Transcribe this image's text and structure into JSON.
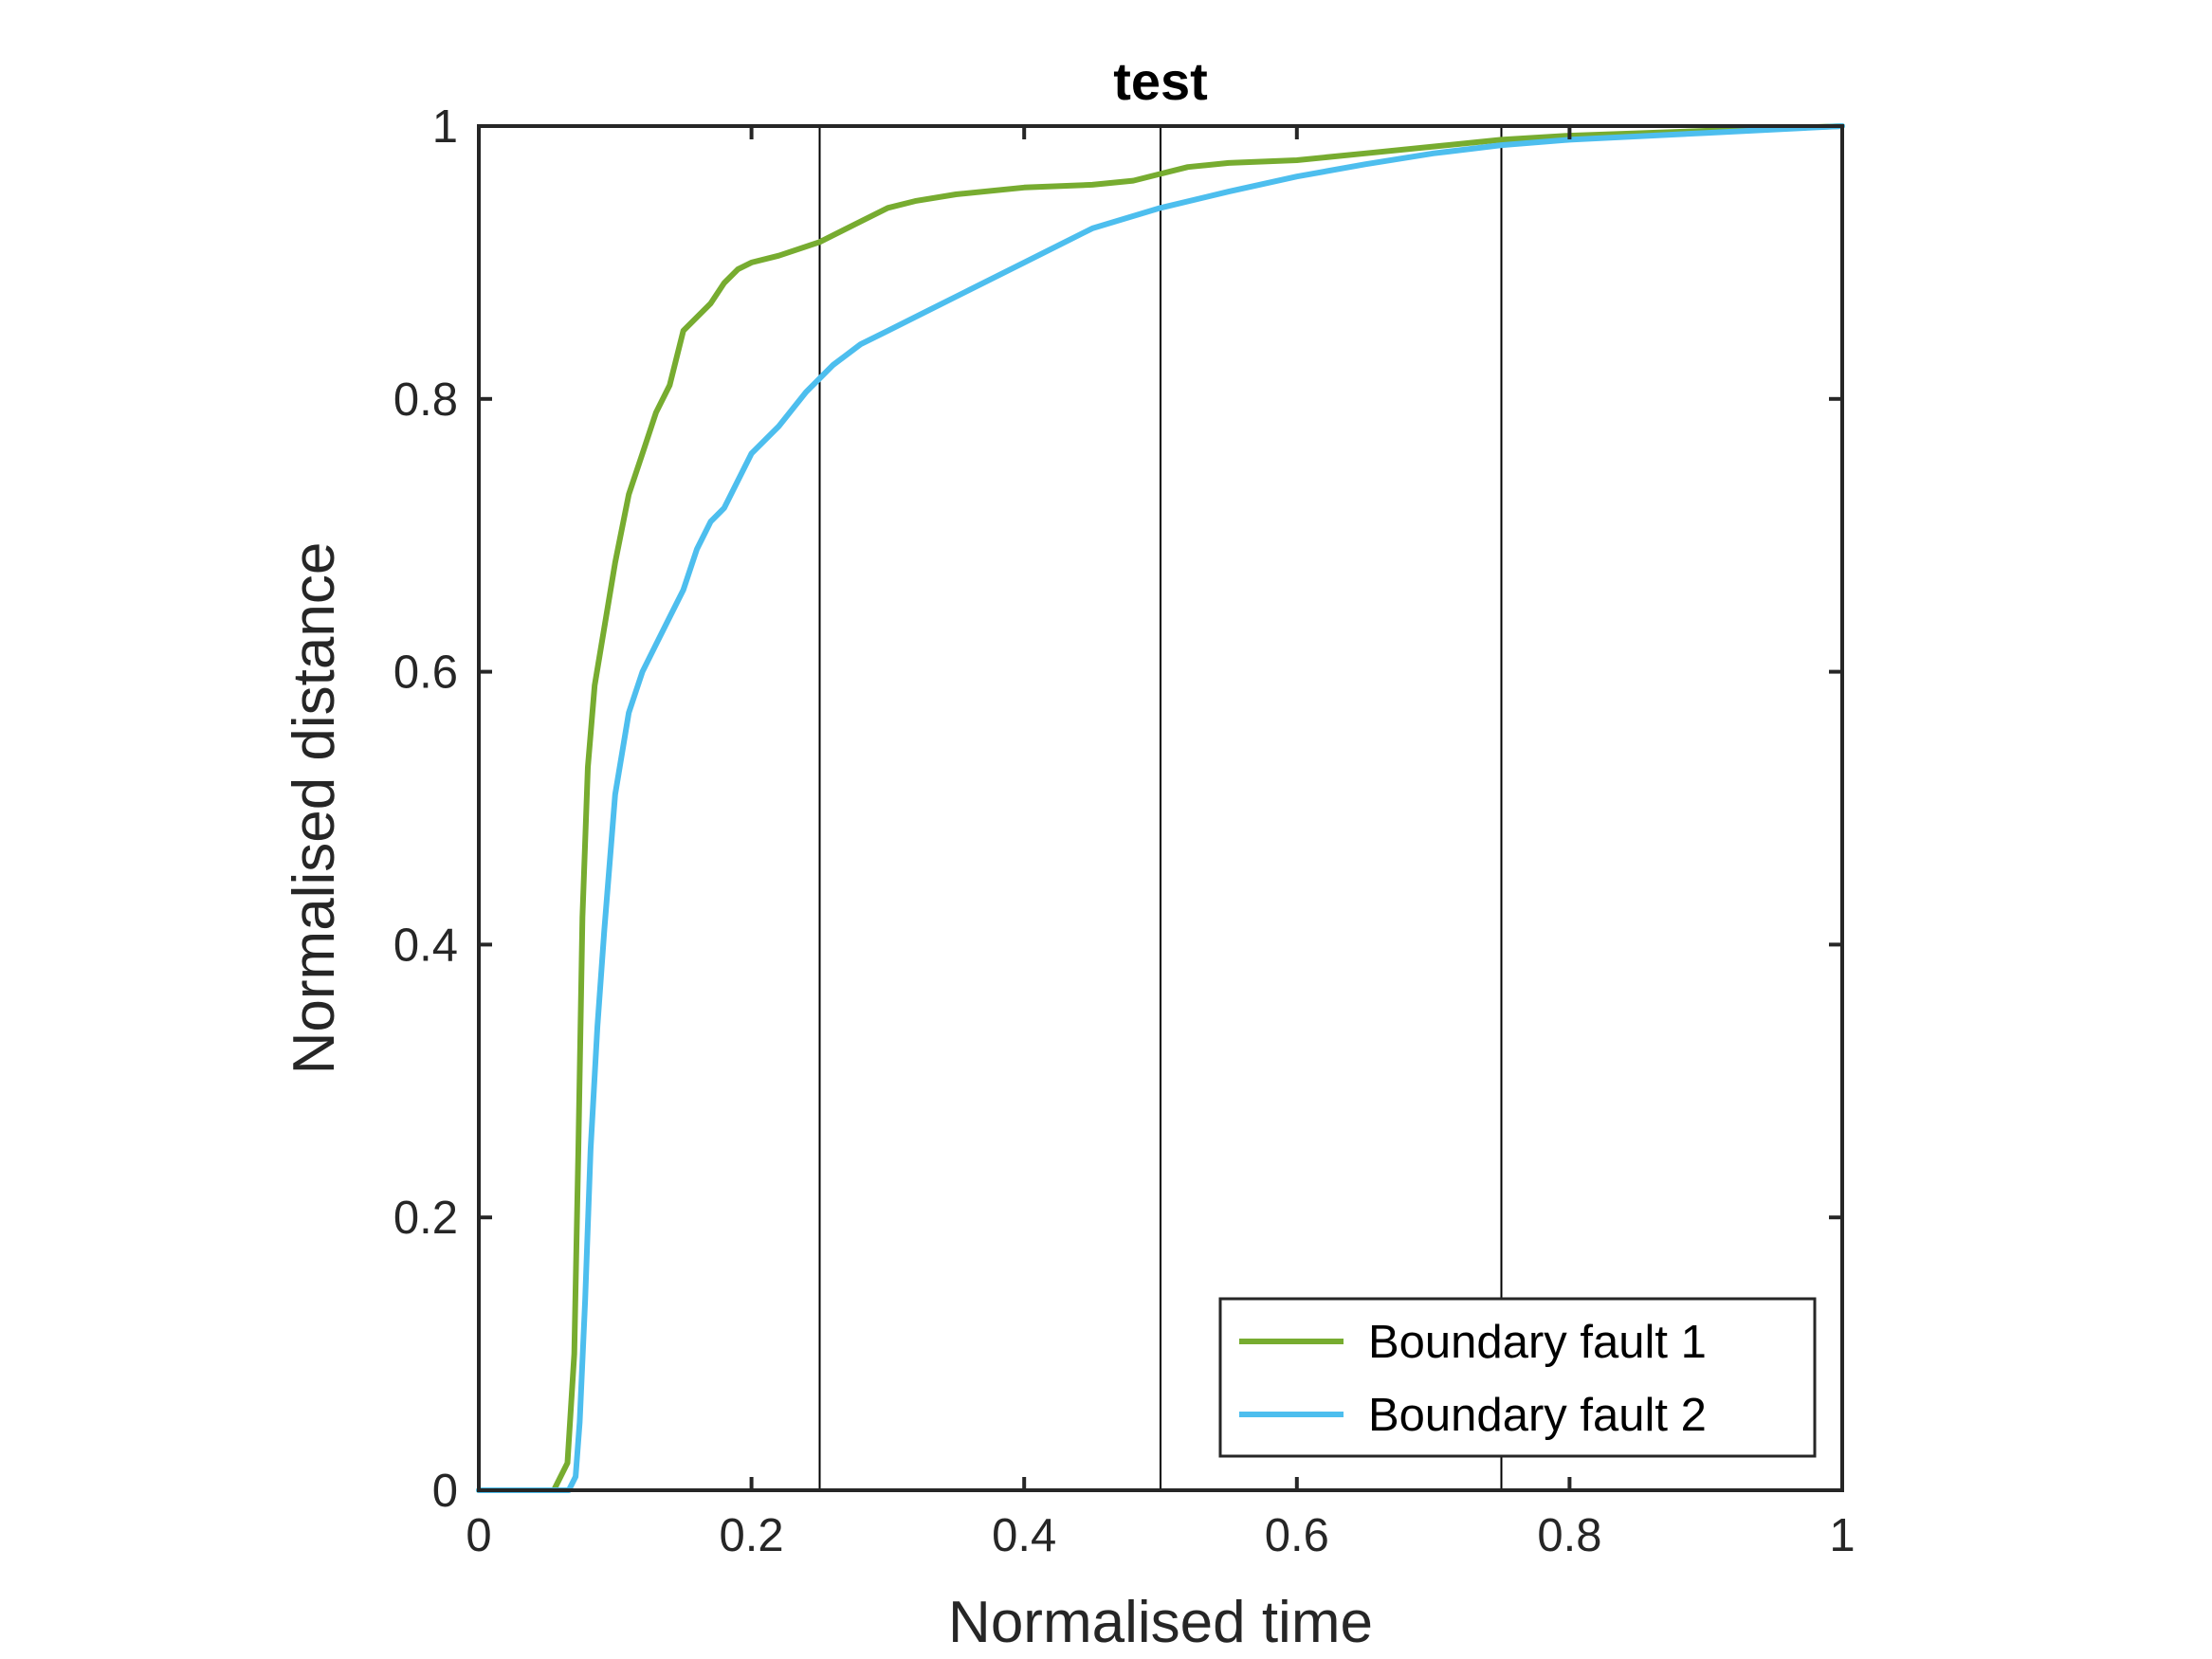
{
  "chart_data": {
    "type": "line",
    "title": "test",
    "xlabel": "Normalised time",
    "ylabel": "Normalised distance",
    "xlim": [
      0,
      1
    ],
    "ylim": [
      0,
      1
    ],
    "xticks": [
      0,
      0.2,
      0.4,
      0.6,
      0.8,
      1
    ],
    "yticks": [
      0,
      0.2,
      0.4,
      0.6,
      0.8,
      1
    ],
    "xtick_labels": [
      "0",
      "0.2",
      "0.4",
      "0.6",
      "0.8",
      "1"
    ],
    "ytick_labels": [
      "0",
      "0.2",
      "0.4",
      "0.6",
      "0.8",
      "1"
    ],
    "vlines": [
      0.25,
      0.5,
      0.75
    ],
    "grid": false,
    "legend_position": "bottom-right",
    "series": [
      {
        "name": "Boundary fault 1",
        "color": "#77AC30",
        "x": [
          0,
          0.055,
          0.065,
          0.07,
          0.073,
          0.076,
          0.08,
          0.085,
          0.09,
          0.1,
          0.11,
          0.12,
          0.13,
          0.14,
          0.15,
          0.16,
          0.17,
          0.18,
          0.19,
          0.2,
          0.22,
          0.25,
          0.28,
          0.3,
          0.32,
          0.35,
          0.4,
          0.45,
          0.48,
          0.5,
          0.52,
          0.55,
          0.6,
          0.65,
          0.7,
          0.75,
          0.8,
          1
        ],
        "y": [
          0,
          0,
          0.02,
          0.1,
          0.25,
          0.42,
          0.53,
          0.59,
          0.62,
          0.68,
          0.73,
          0.76,
          0.79,
          0.81,
          0.85,
          0.86,
          0.87,
          0.885,
          0.895,
          0.9,
          0.905,
          0.915,
          0.93,
          0.94,
          0.945,
          0.95,
          0.955,
          0.957,
          0.96,
          0.965,
          0.97,
          0.973,
          0.975,
          0.98,
          0.985,
          0.99,
          0.993,
          1
        ]
      },
      {
        "name": "Boundary fault 2",
        "color": "#4DBEEE",
        "x": [
          0,
          0.066,
          0.071,
          0.074,
          0.078,
          0.082,
          0.087,
          0.092,
          0.1,
          0.11,
          0.12,
          0.13,
          0.14,
          0.15,
          0.16,
          0.17,
          0.18,
          0.19,
          0.2,
          0.21,
          0.22,
          0.24,
          0.26,
          0.28,
          0.3,
          0.33,
          0.36,
          0.4,
          0.45,
          0.5,
          0.55,
          0.6,
          0.65,
          0.7,
          0.75,
          0.8,
          0.9,
          1
        ],
        "y": [
          0,
          0,
          0.01,
          0.05,
          0.14,
          0.25,
          0.34,
          0.41,
          0.51,
          0.57,
          0.6,
          0.62,
          0.64,
          0.66,
          0.69,
          0.71,
          0.72,
          0.74,
          0.76,
          0.77,
          0.78,
          0.805,
          0.825,
          0.84,
          0.85,
          0.865,
          0.88,
          0.9,
          0.925,
          0.94,
          0.952,
          0.963,
          0.972,
          0.98,
          0.986,
          0.99,
          0.995,
          1
        ]
      }
    ]
  }
}
